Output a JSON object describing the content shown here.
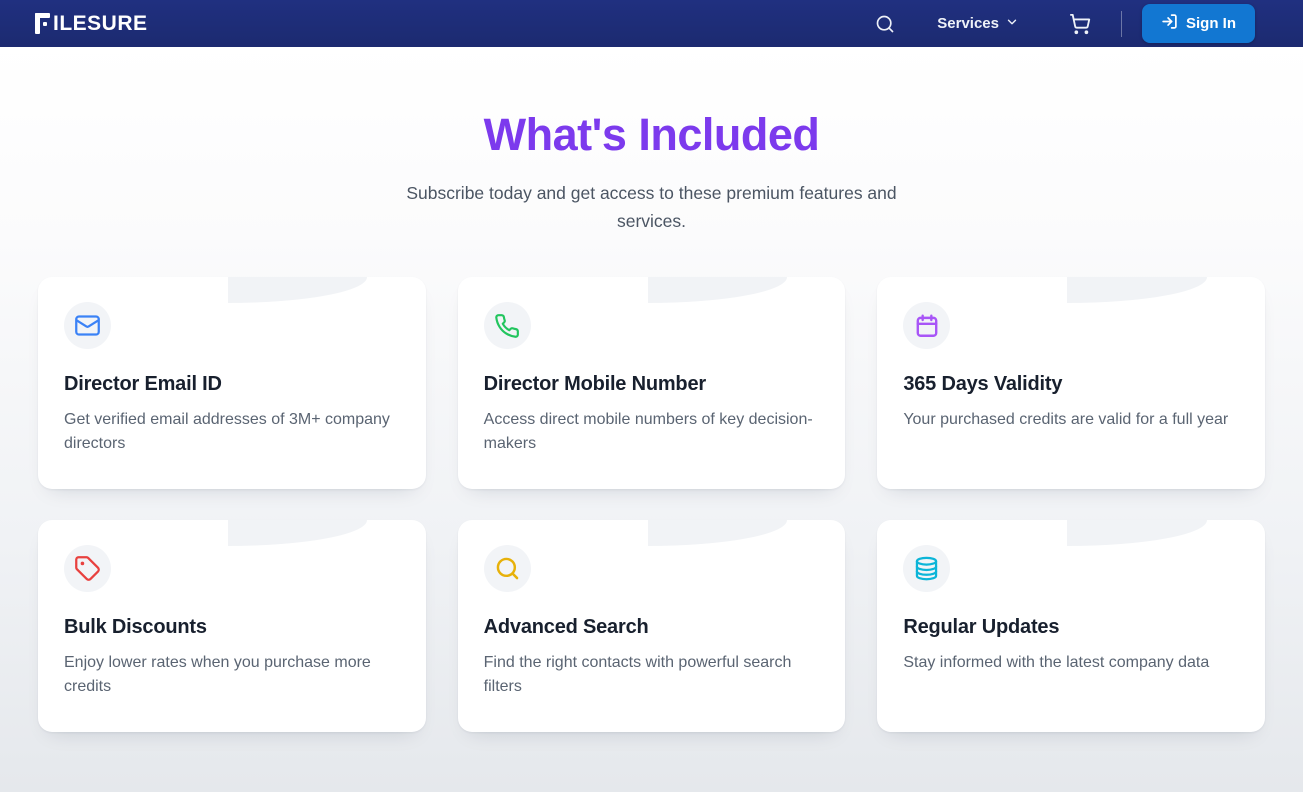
{
  "header": {
    "logo": "FILESURE",
    "services_label": "Services",
    "sign_in_label": "Sign In",
    "colors": {
      "bar": "#1c2a70",
      "sign_in_button": "#1277d2"
    }
  },
  "hero": {
    "title": "What's Included",
    "subtitle": "Subscribe today and get access to these premium features and services.",
    "title_color": "#7c3aed"
  },
  "cards": [
    {
      "icon": "mail-icon",
      "icon_color": "#3b82f6",
      "title": "Director Email ID",
      "description": "Get verified email addresses of 3M+ company directors"
    },
    {
      "icon": "phone-icon",
      "icon_color": "#22c55e",
      "title": "Director Mobile Number",
      "description": "Access direct mobile numbers of key decision-makers"
    },
    {
      "icon": "calendar-icon",
      "icon_color": "#a855f7",
      "title": "365 Days Validity",
      "description": "Your purchased credits are valid for a full year"
    },
    {
      "icon": "tag-icon",
      "icon_color": "#e8413f",
      "title": "Bulk Discounts",
      "description": "Enjoy lower rates when you purchase more credits"
    },
    {
      "icon": "search-icon",
      "icon_color": "#e7b10a",
      "title": "Advanced Search",
      "description": "Find the right contacts with powerful search filters"
    },
    {
      "icon": "database-icon",
      "icon_color": "#0cb5d8",
      "title": "Regular Updates",
      "description": "Stay informed with the latest company data"
    }
  ]
}
